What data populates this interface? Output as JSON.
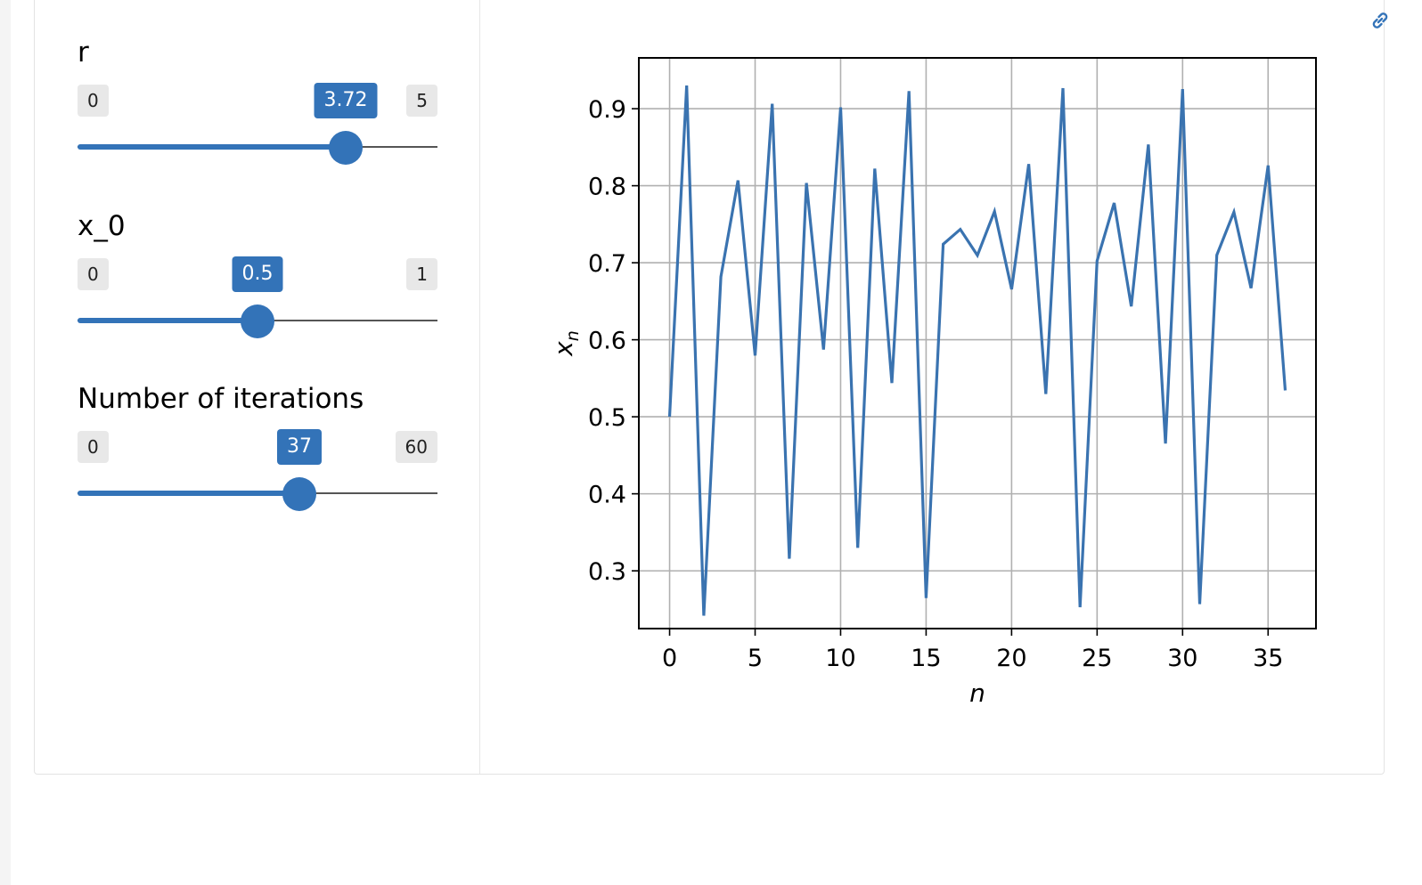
{
  "controls": [
    {
      "label": "r",
      "min": "0",
      "max": "5",
      "value": "3.72",
      "fraction": 0.744
    },
    {
      "label": "x_0",
      "min": "0",
      "max": "1",
      "value": "0.5",
      "fraction": 0.5
    },
    {
      "label": "Number of iterations",
      "min": "0",
      "max": "60",
      "value": "37",
      "fraction": 0.6167
    }
  ],
  "icons": {
    "top_right": "link-icon"
  },
  "colors": {
    "accent": "#3373b8",
    "line": "#3a73b0"
  },
  "chart_data": {
    "type": "line",
    "xlabel": "n",
    "ylabel": "x_n",
    "xlim": [
      -1.8,
      37.8
    ],
    "ylim": [
      0.225,
      0.966
    ],
    "xticks": [
      0,
      5,
      10,
      15,
      20,
      25,
      30,
      35
    ],
    "yticks": [
      0.3,
      0.4,
      0.5,
      0.6,
      0.7,
      0.8,
      0.9
    ],
    "grid": true,
    "series": [
      {
        "x": [
          0,
          1,
          2,
          3,
          4,
          5,
          6,
          7,
          8,
          9,
          10,
          11,
          12,
          13,
          14,
          15,
          16,
          17,
          18,
          19,
          20,
          21,
          22,
          23,
          24,
          25,
          26,
          27,
          28,
          29,
          30,
          31,
          32,
          33,
          34,
          35,
          36
        ],
        "values": [
          0.5,
          0.93,
          0.2418,
          0.6819,
          0.8069,
          0.5796,
          0.9064,
          0.3156,
          0.8035,
          0.5873,
          0.9017,
          0.3298,
          0.8222,
          0.5438,
          0.9229,
          0.2647,
          0.724,
          0.7434,
          0.7096,
          0.7666,
          0.6656,
          0.8281,
          0.5296,
          0.9267,
          0.2527,
          0.7024,
          0.7776,
          0.6434,
          0.8535,
          0.4652,
          0.9254,
          0.2568,
          0.71,
          0.7659,
          0.6671,
          0.8262,
          0.5342
        ]
      }
    ]
  }
}
